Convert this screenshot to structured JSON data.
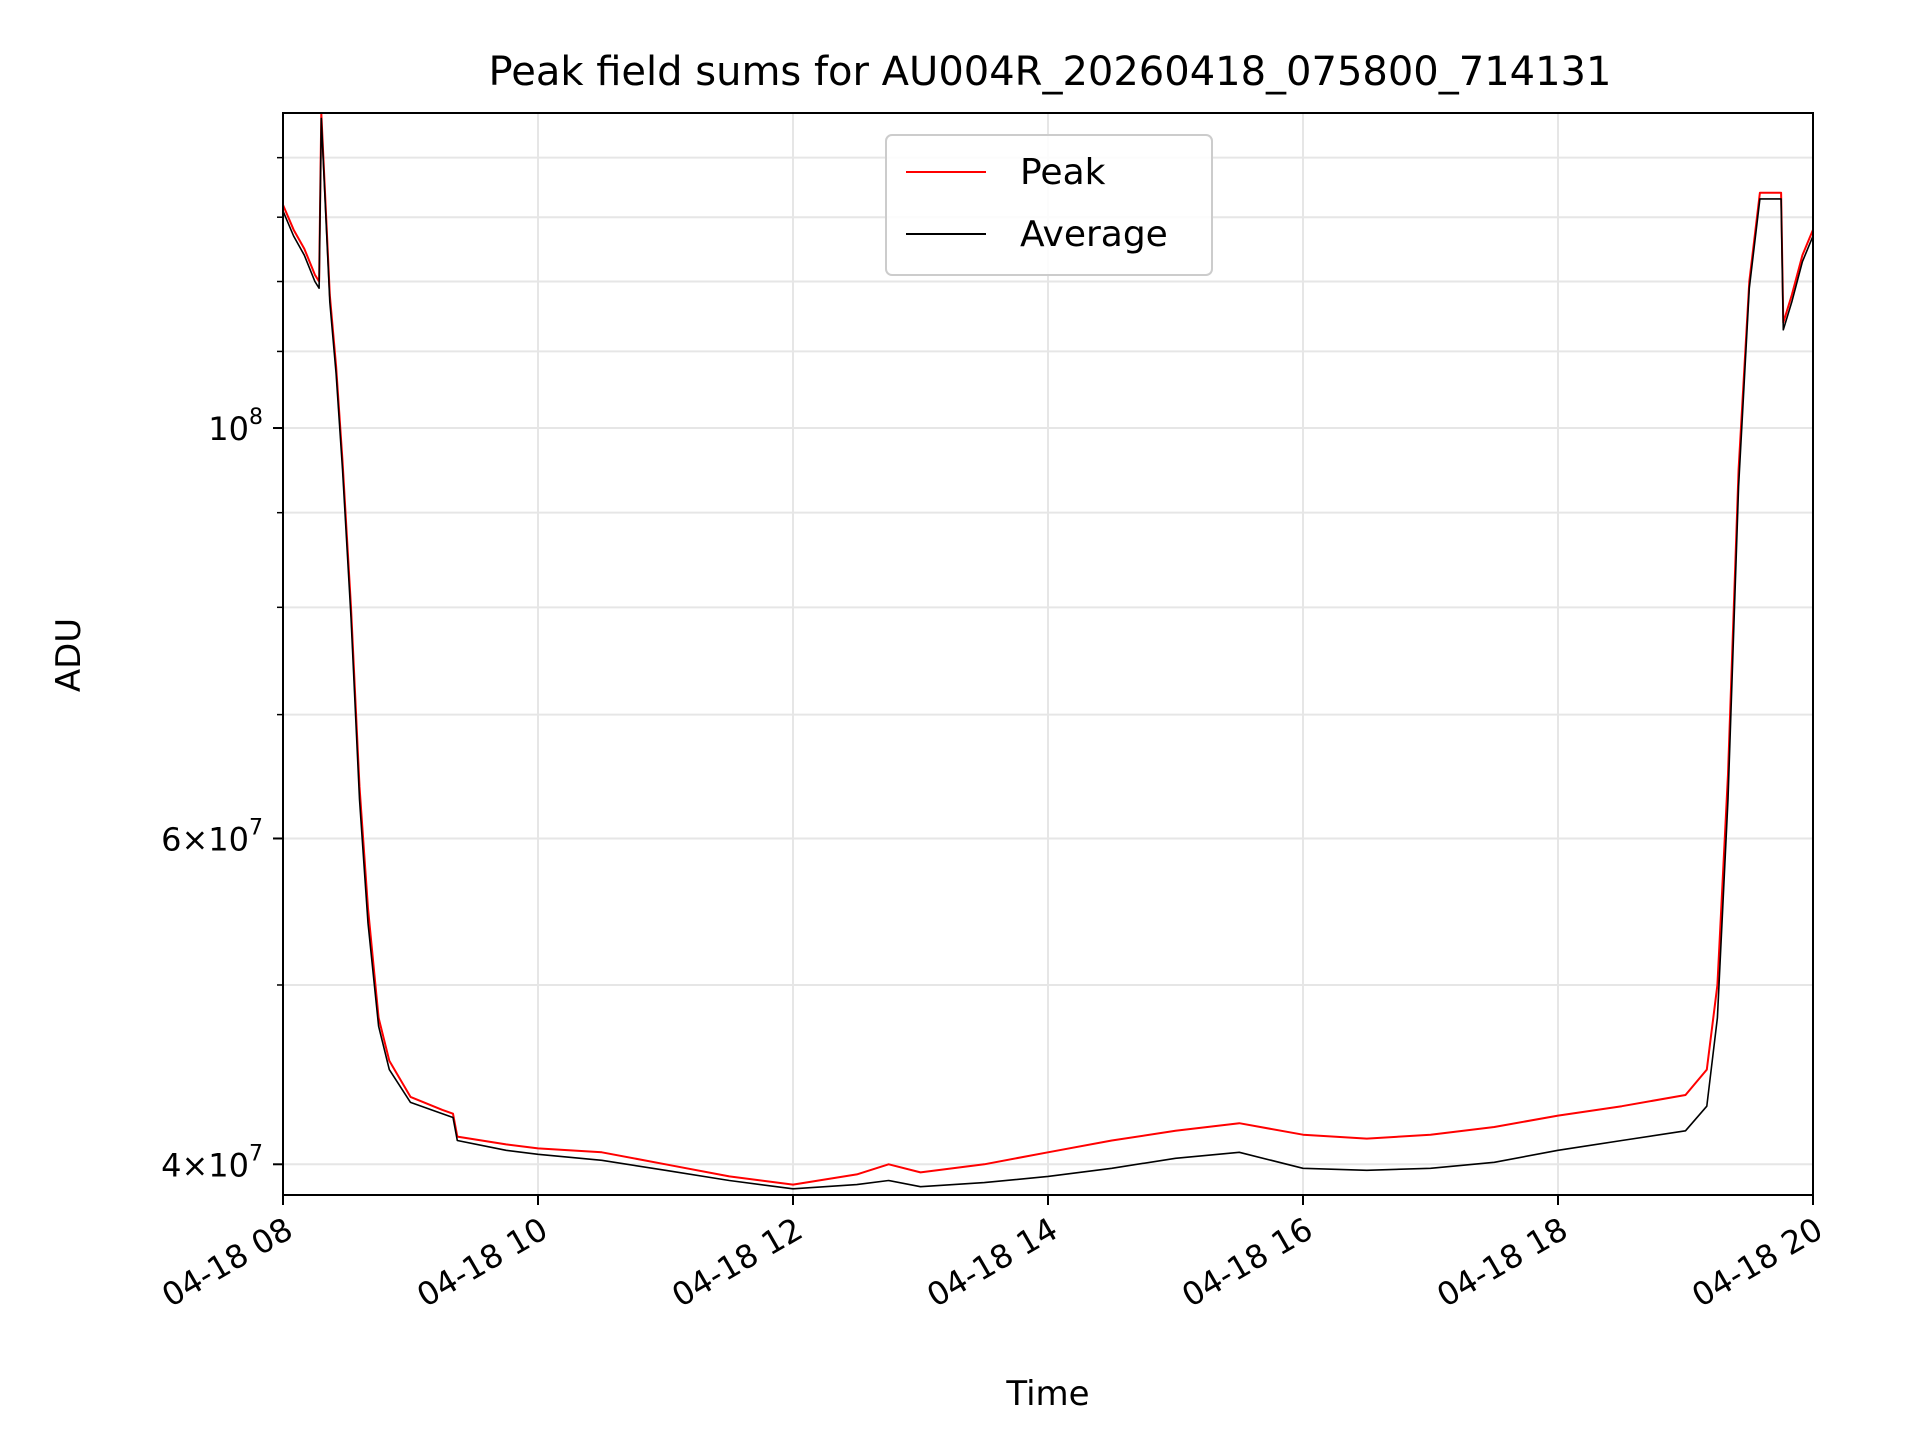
{
  "chart_data": {
    "type": "line",
    "title": "Peak field sums for AU004R_20260418_075800_714131",
    "xlabel": "Time",
    "ylabel": "ADU",
    "xlim": [
      "04-18 08:00",
      "04-18 20:00"
    ],
    "ylim": [
      38500000,
      148000000
    ],
    "yscale": "log",
    "grid": true,
    "legend_position": "top-center",
    "x_tick_labels": [
      "04-18 08",
      "04-18 10",
      "04-18 12",
      "04-18 14",
      "04-18 16",
      "04-18 18",
      "04-18 20"
    ],
    "y_tick_labels": [
      {
        "value": 40000000,
        "mantissa": "4",
        "exponent": "7"
      },
      {
        "value": 60000000,
        "mantissa": "6",
        "exponent": "7"
      },
      {
        "value": 100000000,
        "mantissa": "",
        "exponent": "8"
      }
    ],
    "series": [
      {
        "name": "Peak",
        "color": "#ff0000",
        "points": [
          [
            "04-18 08:00",
            132000000
          ],
          [
            "04-18 08:05",
            128000000
          ],
          [
            "04-18 08:10",
            125000000
          ],
          [
            "04-18 08:15",
            121000000
          ],
          [
            "04-18 08:17",
            120000000
          ],
          [
            "04-18 08:18",
            148000000
          ],
          [
            "04-18 08:22",
            118000000
          ],
          [
            "04-18 08:25",
            108000000
          ],
          [
            "04-18 08:28",
            96000000
          ],
          [
            "04-18 08:32",
            80000000
          ],
          [
            "04-18 08:36",
            64000000
          ],
          [
            "04-18 08:40",
            55000000
          ],
          [
            "04-18 08:45",
            48000000
          ],
          [
            "04-18 08:50",
            45500000
          ],
          [
            "04-18 09:00",
            43500000
          ],
          [
            "04-18 09:15",
            42800000
          ],
          [
            "04-18 09:20",
            42600000
          ],
          [
            "04-18 09:22",
            41400000
          ],
          [
            "04-18 09:45",
            41000000
          ],
          [
            "04-18 10:00",
            40800000
          ],
          [
            "04-18 10:30",
            40600000
          ],
          [
            "04-18 11:00",
            40000000
          ],
          [
            "04-18 11:30",
            39400000
          ],
          [
            "04-18 12:00",
            39000000
          ],
          [
            "04-18 12:30",
            39500000
          ],
          [
            "04-18 12:45",
            40000000
          ],
          [
            "04-18 13:00",
            39600000
          ],
          [
            "04-18 13:30",
            40000000
          ],
          [
            "04-18 14:00",
            40600000
          ],
          [
            "04-18 14:30",
            41200000
          ],
          [
            "04-18 15:00",
            41700000
          ],
          [
            "04-18 15:30",
            42100000
          ],
          [
            "04-18 16:00",
            41500000
          ],
          [
            "04-18 16:30",
            41300000
          ],
          [
            "04-18 17:00",
            41500000
          ],
          [
            "04-18 17:30",
            41900000
          ],
          [
            "04-18 18:00",
            42500000
          ],
          [
            "04-18 18:30",
            43000000
          ],
          [
            "04-18 19:00",
            43600000
          ],
          [
            "04-18 19:10",
            45000000
          ],
          [
            "04-18 19:15",
            50000000
          ],
          [
            "04-18 19:20",
            65000000
          ],
          [
            "04-18 19:25",
            95000000
          ],
          [
            "04-18 19:30",
            120000000
          ],
          [
            "04-18 19:35",
            134000000
          ],
          [
            "04-18 19:45",
            134000000
          ],
          [
            "04-18 19:46",
            114000000
          ],
          [
            "04-18 19:50",
            118000000
          ],
          [
            "04-18 19:55",
            124000000
          ],
          [
            "04-18 20:00",
            128000000
          ]
        ]
      },
      {
        "name": "Average",
        "color": "#000000",
        "points": [
          [
            "04-18 08:00",
            131000000
          ],
          [
            "04-18 08:05",
            127000000
          ],
          [
            "04-18 08:10",
            124000000
          ],
          [
            "04-18 08:15",
            120000000
          ],
          [
            "04-18 08:17",
            119000000
          ],
          [
            "04-18 08:18",
            147000000
          ],
          [
            "04-18 08:22",
            117000000
          ],
          [
            "04-18 08:25",
            107000000
          ],
          [
            "04-18 08:28",
            95000000
          ],
          [
            "04-18 08:32",
            79000000
          ],
          [
            "04-18 08:36",
            63000000
          ],
          [
            "04-18 08:40",
            54000000
          ],
          [
            "04-18 08:45",
            47500000
          ],
          [
            "04-18 08:50",
            45000000
          ],
          [
            "04-18 09:00",
            43200000
          ],
          [
            "04-18 09:15",
            42600000
          ],
          [
            "04-18 09:20",
            42400000
          ],
          [
            "04-18 09:22",
            41200000
          ],
          [
            "04-18 09:45",
            40700000
          ],
          [
            "04-18 10:00",
            40500000
          ],
          [
            "04-18 10:30",
            40200000
          ],
          [
            "04-18 11:00",
            39700000
          ],
          [
            "04-18 11:30",
            39200000
          ],
          [
            "04-18 12:00",
            38800000
          ],
          [
            "04-18 12:30",
            39000000
          ],
          [
            "04-18 12:45",
            39200000
          ],
          [
            "04-18 13:00",
            38900000
          ],
          [
            "04-18 13:30",
            39100000
          ],
          [
            "04-18 14:00",
            39400000
          ],
          [
            "04-18 14:30",
            39800000
          ],
          [
            "04-18 15:00",
            40300000
          ],
          [
            "04-18 15:30",
            40600000
          ],
          [
            "04-18 16:00",
            39800000
          ],
          [
            "04-18 16:30",
            39700000
          ],
          [
            "04-18 17:00",
            39800000
          ],
          [
            "04-18 17:30",
            40100000
          ],
          [
            "04-18 18:00",
            40700000
          ],
          [
            "04-18 18:30",
            41200000
          ],
          [
            "04-18 19:00",
            41700000
          ],
          [
            "04-18 19:10",
            43000000
          ],
          [
            "04-18 19:15",
            48000000
          ],
          [
            "04-18 19:20",
            63000000
          ],
          [
            "04-18 19:25",
            93000000
          ],
          [
            "04-18 19:30",
            119000000
          ],
          [
            "04-18 19:35",
            133000000
          ],
          [
            "04-18 19:45",
            133000000
          ],
          [
            "04-18 19:46",
            113000000
          ],
          [
            "04-18 19:50",
            117000000
          ],
          [
            "04-18 19:55",
            123000000
          ],
          [
            "04-18 20:00",
            127000000
          ]
        ]
      }
    ]
  }
}
